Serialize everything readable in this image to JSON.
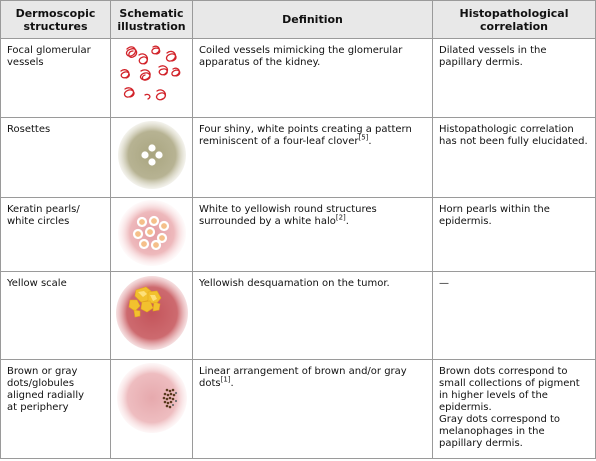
{
  "headers": {
    "structure": "Dermoscopic\nstructures",
    "illustration": "Schematic\nillustration",
    "definition": "Definition",
    "histo": "Histopathological\ncorrelation"
  },
  "rows": [
    {
      "structure": "Focal glomerular\nvessels",
      "illustration_icon": "glomerular-vessels-illustration",
      "definition": "Coiled vessels mimicking the glomerular\napparatus of the kidney.",
      "histo": "Dilated vessels in the\npapillary dermis."
    },
    {
      "structure": "Rosettes",
      "illustration_icon": "rosettes-illustration",
      "definition_pre": "Four shiny, white points creating a pattern\nreminiscent of a four-leaf clover",
      "definition_ref": "[5]",
      "definition_post": ".",
      "histo": "Histopathologic correlation\nhas not been fully elucidated."
    },
    {
      "structure": "Keratin pearls/\nwhite circles",
      "illustration_icon": "keratin-pearls-illustration",
      "definition_pre": "White to yellowish round structures\nsurrounded by a white halo",
      "definition_ref": "[2]",
      "definition_post": ".",
      "histo": "Horn pearls within the\nepidermis."
    },
    {
      "structure": "Yellow scale",
      "illustration_icon": "yellow-scale-illustration",
      "definition": "Yellowish desquamation on the tumor.",
      "histo": "—"
    },
    {
      "structure": "Brown or gray\ndots/globules\naligned radially\nat periphery",
      "illustration_icon": "brown-gray-dots-illustration",
      "definition_pre": "Linear arrangement of brown and/or gray\ndots",
      "definition_ref": "[1]",
      "definition_post": ".",
      "histo": "Brown dots correspond to\nsmall collections of pigment\nin higher levels of the\nepidermis.\nGray dots correspond to\nmelanophages in the\npapillary dermis."
    }
  ],
  "colors": {
    "header_bg": "#e8e8e8",
    "border": "#9a9a9a",
    "vessel_red": "#d2232a",
    "rosette_bg": "#b5b08c",
    "pink_skin": "#e9b4b7",
    "tumor_red": "#c85a5f",
    "scale_yellow": "#f2c12e",
    "dot_brown": "#5a3a1e"
  }
}
